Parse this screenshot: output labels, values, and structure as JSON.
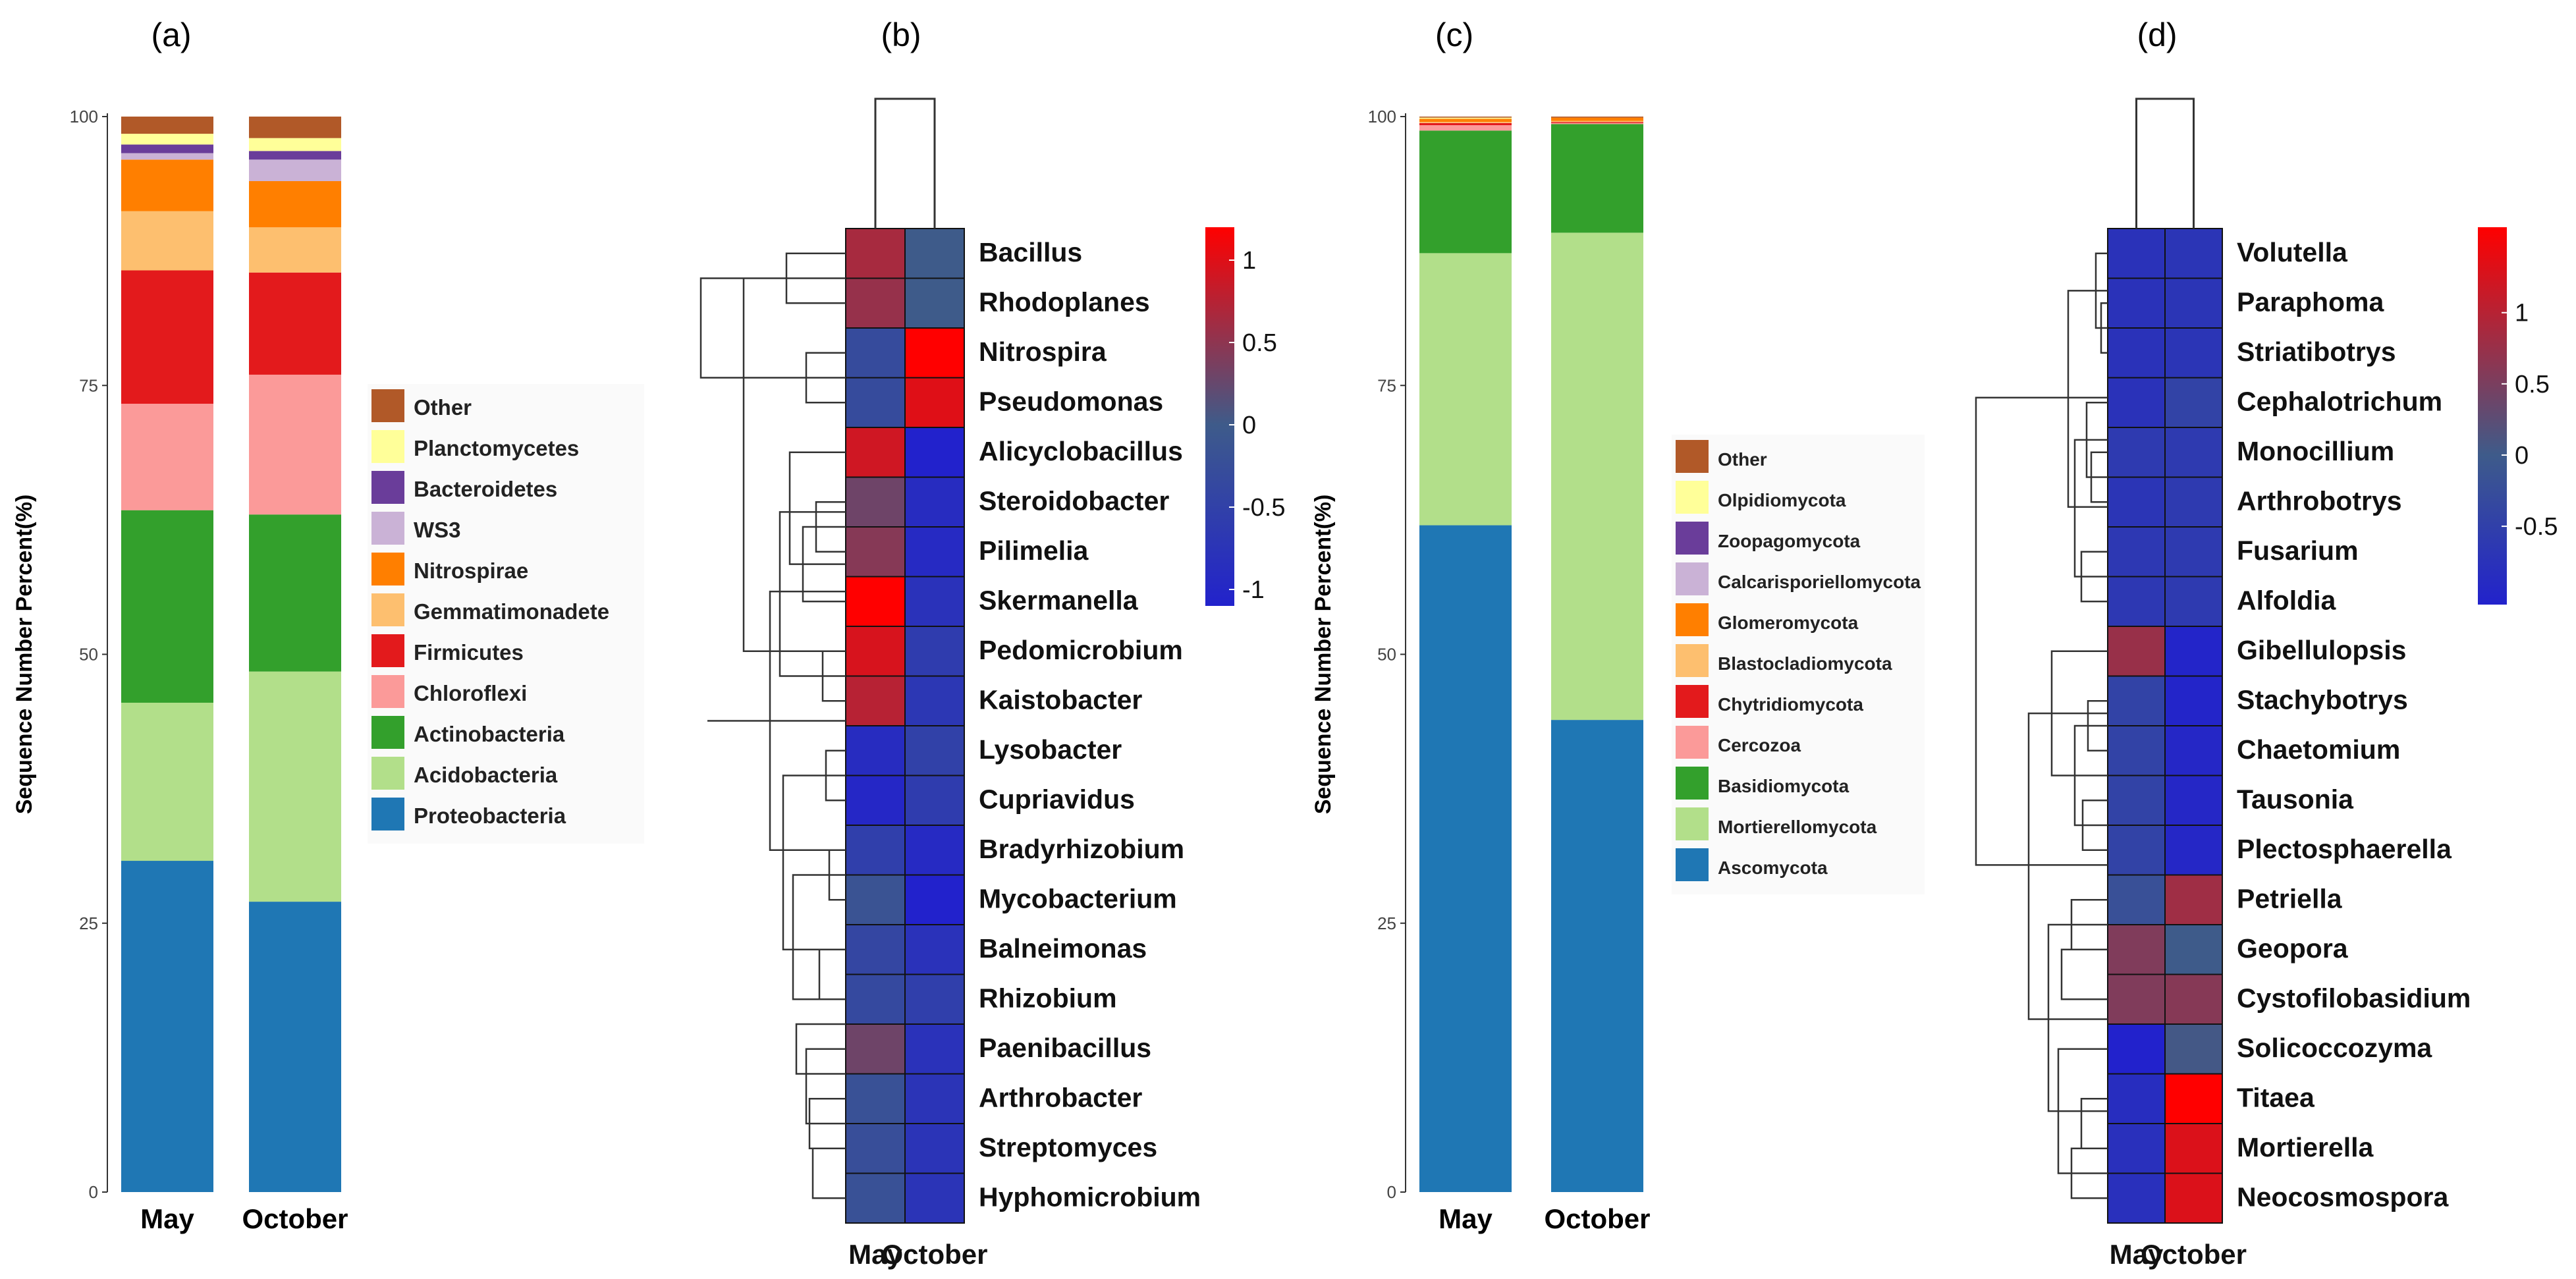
{
  "panel_labels": [
    "(a)",
    "(b)",
    "(c)",
    "(d)"
  ],
  "months": [
    "May",
    "October"
  ],
  "chart_data": [
    {
      "type": "bar",
      "stacked": true,
      "title": "(a)",
      "xlabel": "",
      "ylabel": "Sequence Number Percent(%)",
      "ylim": [
        0,
        100
      ],
      "yticks": [
        "0",
        "25",
        "50",
        "75",
        "100"
      ],
      "categories": [
        "May",
        "October"
      ],
      "series": [
        {
          "name": "Proteobacteria",
          "color": "#1f77b4",
          "values": [
            30.8,
            27.0
          ]
        },
        {
          "name": "Acidobacteria",
          "color": "#b2df8a",
          "values": [
            14.7,
            21.4
          ]
        },
        {
          "name": "Actinobacteria",
          "color": "#33a02c",
          "values": [
            17.9,
            14.6
          ]
        },
        {
          "name": "Chloroflexi",
          "color": "#fb9a99",
          "values": [
            9.9,
            13.0
          ]
        },
        {
          "name": "Firmicutes",
          "color": "#e31a1c",
          "values": [
            12.4,
            9.5
          ]
        },
        {
          "name": "Gemmatimonadete",
          "color": "#fdbf6f",
          "values": [
            5.5,
            4.2
          ]
        },
        {
          "name": "Nitrospirae",
          "color": "#ff7f00",
          "values": [
            4.8,
            4.3
          ]
        },
        {
          "name": "WS3",
          "color": "#cab2d6",
          "values": [
            0.6,
            2.0
          ]
        },
        {
          "name": "Bacteroidetes",
          "color": "#6a3d9a",
          "values": [
            0.8,
            0.8
          ]
        },
        {
          "name": "Planctomycetes",
          "color": "#ffff99",
          "values": [
            1.0,
            1.2
          ]
        },
        {
          "name": "Other",
          "color": "#b15928",
          "values": [
            1.6,
            2.0
          ]
        }
      ]
    },
    {
      "type": "heatmap",
      "title": "(b)",
      "columns": [
        "May",
        "October"
      ],
      "rows": [
        "Bacillus",
        "Rhodoplanes",
        "Nitrospira",
        "Pseudomonas",
        "Alicyclobacillus",
        "Steroidobacter",
        "Pilimelia",
        "Skermanella",
        "Pedomicrobium",
        "Kaistobacter",
        "Lysobacter",
        "Cupriavidus",
        "Bradyrhizobium",
        "Mycobacterium",
        "Balneimonas",
        "Rhizobium",
        "Paenibacillus",
        "Arthrobacter",
        "Streptomyces",
        "Hyphomicrobium"
      ],
      "values": [
        [
          0.65,
          0.0
        ],
        [
          0.55,
          0.0
        ],
        [
          -0.3,
          1.2
        ],
        [
          -0.3,
          1.0
        ],
        [
          0.9,
          -1.1
        ],
        [
          0.3,
          -0.9
        ],
        [
          0.45,
          -0.95
        ],
        [
          1.2,
          -0.8
        ],
        [
          0.95,
          -0.6
        ],
        [
          0.75,
          -0.7
        ],
        [
          -0.9,
          -0.5
        ],
        [
          -1.0,
          -0.6
        ],
        [
          -0.55,
          -0.95
        ],
        [
          -0.15,
          -1.1
        ],
        [
          -0.4,
          -0.8
        ],
        [
          -0.35,
          -0.55
        ],
        [
          0.3,
          -0.8
        ],
        [
          -0.2,
          -0.75
        ],
        [
          -0.25,
          -0.75
        ],
        [
          -0.2,
          -0.75
        ]
      ],
      "color_scale": {
        "min": -1.1,
        "max": 1.2,
        "low": "#2222cc",
        "mid": "#3e5b8a",
        "high": "#ff0000",
        "ticks": [
          "1",
          "0.5",
          "0",
          "-0.5",
          "-1"
        ]
      }
    },
    {
      "type": "bar",
      "stacked": true,
      "title": "(c)",
      "xlabel": "",
      "ylabel": "Sequence Number Percent(%)",
      "ylim": [
        0,
        100
      ],
      "yticks": [
        "0",
        "25",
        "50",
        "75",
        "100"
      ],
      "categories": [
        "May",
        "October"
      ],
      "series": [
        {
          "name": "Ascomycota",
          "color": "#1f77b4",
          "values": [
            62.0,
            43.9
          ]
        },
        {
          "name": "Mortierellomycota",
          "color": "#b2df8a",
          "values": [
            25.3,
            45.3
          ]
        },
        {
          "name": "Basidiomycota",
          "color": "#33a02c",
          "values": [
            11.4,
            10.1
          ]
        },
        {
          "name": "Cercozoa",
          "color": "#fb9a99",
          "values": [
            0.5,
            0.1
          ]
        },
        {
          "name": "Chytridiomycota",
          "color": "#e31a1c",
          "values": [
            0.2,
            0.1
          ]
        },
        {
          "name": "Blastocladiomycota",
          "color": "#fdbf6f",
          "values": [
            0.1,
            0.1
          ]
        },
        {
          "name": "Glomeromycota",
          "color": "#ff7f00",
          "values": [
            0.3,
            0.3
          ]
        },
        {
          "name": "Calcarisporiellomycota",
          "color": "#cab2d6",
          "values": [
            0.0,
            0.0
          ]
        },
        {
          "name": "Zoopagomycota",
          "color": "#6a3d9a",
          "values": [
            0.0,
            0.0
          ]
        },
        {
          "name": "Olpidiomycota",
          "color": "#ffff99",
          "values": [
            0.1,
            0.0
          ]
        },
        {
          "name": "Other",
          "color": "#b15928",
          "values": [
            0.1,
            0.1
          ]
        }
      ]
    },
    {
      "type": "heatmap",
      "title": "(d)",
      "columns": [
        "May",
        "October"
      ],
      "rows": [
        "Volutella",
        "Paraphoma",
        "Striatibotrys",
        "Cephalotrichum",
        "Monocillium",
        "Arthrobotrys",
        "Fusarium",
        "Alfoldia",
        "Gibellulopsis",
        "Stachybotrys",
        "Chaetomium",
        "Tausonia",
        "Plectosphaerella",
        "Petriella",
        "Geopora",
        "Cystofilobasidium",
        "Solicoccozyma",
        "Titaea",
        "Mortierella",
        "Neocosmospora"
      ],
      "values": [
        [
          -0.75,
          -0.7
        ],
        [
          -0.75,
          -0.7
        ],
        [
          -0.75,
          -0.7
        ],
        [
          -0.75,
          -0.45
        ],
        [
          -0.6,
          -0.6
        ],
        [
          -0.7,
          -0.6
        ],
        [
          -0.65,
          -0.6
        ],
        [
          -0.65,
          -0.6
        ],
        [
          0.75,
          -1.0
        ],
        [
          -0.45,
          -1.0
        ],
        [
          -0.45,
          -0.95
        ],
        [
          -0.45,
          -0.95
        ],
        [
          -0.45,
          -0.95
        ],
        [
          -0.2,
          0.8
        ],
        [
          0.55,
          0.0
        ],
        [
          0.55,
          0.6
        ],
        [
          -1.05,
          0.05
        ],
        [
          -0.85,
          1.6
        ],
        [
          -0.8,
          1.3
        ],
        [
          -0.8,
          1.3
        ]
      ],
      "color_scale": {
        "min": -1.05,
        "max": 1.6,
        "low": "#2222cc",
        "mid": "#3e5b8a",
        "high": "#ff0000",
        "ticks": [
          "1",
          "0.5",
          "0",
          "-0.5"
        ]
      }
    }
  ]
}
